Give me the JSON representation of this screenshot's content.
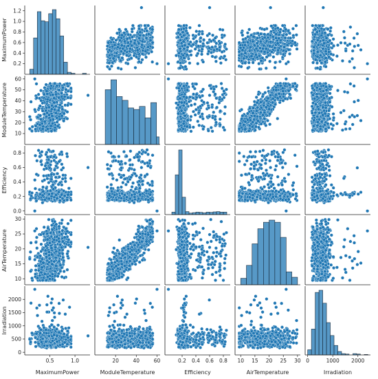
{
  "chart_data": {
    "type": "pairplot",
    "title": "",
    "point_color": "#1f77b4",
    "edge_color": "#ffffff",
    "diagonal": "histogram",
    "off_diagonal": "scatter",
    "grid": false,
    "variables": [
      {
        "name": "MaximumPower",
        "range": [
          0.0,
          1.3
        ],
        "x_ticks": [
          "0.5",
          "1.0"
        ],
        "x_tick_values": [
          0.5,
          1.0
        ],
        "y_ticks": [
          "0.2",
          "0.4",
          "0.6",
          "0.8",
          "1.0",
          "1.2"
        ],
        "y_tick_values": [
          0.2,
          0.4,
          0.6,
          0.8,
          1.0,
          1.2
        ]
      },
      {
        "name": "ModuleTemperature",
        "range": [
          0,
          63
        ],
        "x_ticks": [
          "20",
          "40",
          "60"
        ],
        "x_tick_values": [
          20,
          40,
          60
        ],
        "y_ticks": [
          "10",
          "20",
          "30",
          "40",
          "50",
          "60"
        ],
        "y_tick_values": [
          10,
          20,
          30,
          40,
          50,
          60
        ]
      },
      {
        "name": "Efficiency",
        "range": [
          -0.05,
          0.9
        ],
        "x_ticks": [
          "0.2",
          "0.4",
          "0.6",
          "0.8"
        ],
        "x_tick_values": [
          0.2,
          0.4,
          0.6,
          0.8
        ],
        "y_ticks": [
          "0.0",
          "0.2",
          "0.4",
          "0.6",
          "0.8"
        ],
        "y_tick_values": [
          0.0,
          0.2,
          0.4,
          0.6,
          0.8
        ]
      },
      {
        "name": "AirTemperature",
        "range": [
          8,
          31
        ],
        "x_ticks": [
          "10",
          "15",
          "20",
          "25",
          "30"
        ],
        "x_tick_values": [
          10,
          15,
          20,
          25,
          30
        ],
        "y_ticks": [
          "10",
          "15",
          "20",
          "25",
          "30"
        ],
        "y_tick_values": [
          10,
          15,
          20,
          25,
          30
        ]
      },
      {
        "name": "Irradiation",
        "range": [
          -100,
          2500
        ],
        "x_ticks": [
          "0",
          "1000",
          "2000"
        ],
        "x_tick_values": [
          0,
          1000,
          2000
        ],
        "y_ticks": [
          "0",
          "500",
          "1000",
          "1500",
          "2000"
        ],
        "y_tick_values": [
          0,
          500,
          1000,
          1500,
          2000
        ]
      }
    ],
    "histograms": [
      {
        "variable": "MaximumPower",
        "bin_edges": [
          0.1,
          0.175,
          0.25,
          0.325,
          0.4,
          0.475,
          0.55,
          0.625,
          0.7,
          0.775,
          0.85,
          0.925,
          1.0,
          1.075,
          1.15,
          1.225,
          1.3
        ],
        "counts": [
          5,
          36,
          62,
          53,
          52,
          60,
          64,
          55,
          38,
          12,
          2,
          1,
          0,
          0,
          1,
          0
        ]
      },
      {
        "variable": "ModuleTemperature",
        "bin_edges": [
          10,
          15.5,
          21,
          26.5,
          32,
          37.5,
          43,
          48.5,
          54,
          59.5,
          62
        ],
        "counts": [
          72,
          85,
          63,
          58,
          48,
          46,
          50,
          35,
          55,
          10
        ]
      },
      {
        "variable": "Efficiency",
        "bin_edges": [
          0.0,
          0.05,
          0.1,
          0.15,
          0.2,
          0.25,
          0.3,
          0.35,
          0.4,
          0.45,
          0.5,
          0.55,
          0.6,
          0.65,
          0.7,
          0.75,
          0.8,
          0.85
        ],
        "counts": [
          0,
          10,
          160,
          260,
          70,
          12,
          6,
          8,
          10,
          9,
          7,
          10,
          9,
          11,
          12,
          10,
          10
        ]
      },
      {
        "variable": "AirTemperature",
        "bin_edges": [
          10,
          12,
          14,
          16,
          18,
          20,
          22,
          24,
          26,
          28,
          30
        ],
        "counts": [
          6,
          18,
          38,
          52,
          58,
          60,
          58,
          44,
          12,
          7
        ]
      },
      {
        "variable": "Irradiation",
        "bin_edges": [
          0,
          150,
          300,
          450,
          600,
          750,
          900,
          1050,
          1200,
          1350,
          1500,
          1650,
          1800,
          1950,
          2100,
          2250,
          2400
        ],
        "counts": [
          12,
          60,
          145,
          150,
          120,
          75,
          45,
          22,
          8,
          3,
          2,
          0,
          3,
          2,
          0,
          1
        ]
      }
    ]
  }
}
